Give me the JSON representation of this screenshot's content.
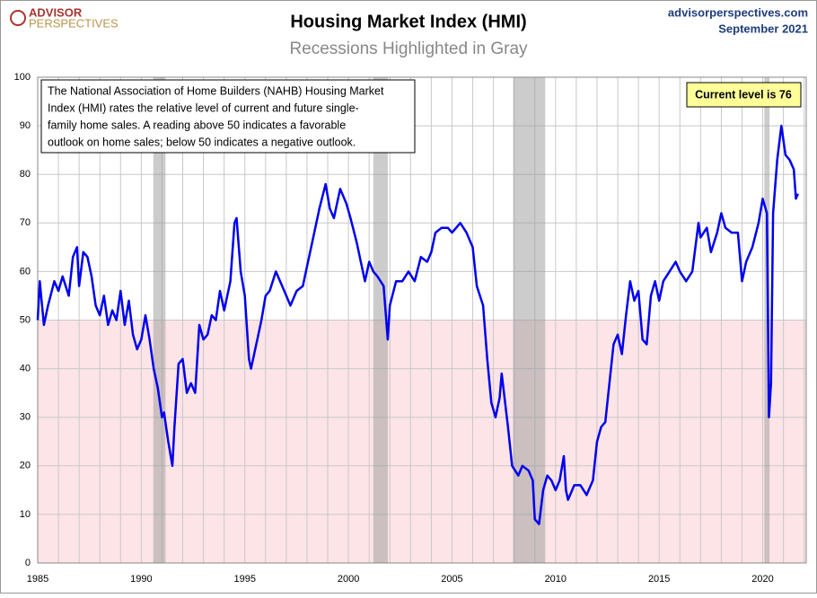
{
  "chart_data": {
    "type": "line",
    "logo": [
      "ADVISOR",
      "PERSPECTIVES"
    ],
    "title": "Housing Market Index (HMI)",
    "subtitle": "Recessions Highlighted in Gray",
    "source": "advisorperspectives.com",
    "date": "September 2021",
    "annotation": [
      "The National Association of Home Builders (NAHB) Housing Market",
      "Index (HMI) rates the relative level of current and future single-",
      "family home sales. A reading above 50 indicates a favorable",
      "outlook on home sales; below 50 indicates a negative outlook."
    ],
    "callout": "Current level is 76",
    "threshold": 50,
    "recessions": [
      [
        1990.58,
        1991.17
      ],
      [
        2001.2,
        2001.9
      ],
      [
        2007.95,
        2009.5
      ],
      [
        2020.08,
        2020.33
      ]
    ],
    "xlim": [
      1985,
      2022.1
    ],
    "xticks": [
      1985,
      1990,
      1995,
      2000,
      2005,
      2010,
      2015,
      2020
    ],
    "xgrid": [
      1986,
      1987,
      1988,
      1989,
      1991,
      1992,
      1993,
      1994,
      1996,
      1997,
      1998,
      1999,
      2001,
      2002,
      2003,
      2004,
      2006,
      2007,
      2008,
      2009,
      2011,
      2012,
      2013,
      2014,
      2016,
      2017,
      2018,
      2019,
      2021,
      2022
    ],
    "ylim": [
      0,
      100
    ],
    "yticks": [
      0,
      10,
      20,
      30,
      40,
      50,
      60,
      70,
      80,
      90,
      100
    ],
    "grid": true,
    "series": [
      {
        "name": "HMI",
        "color": "#0000ee",
        "x": [
          1985.0,
          1985.1,
          1985.3,
          1985.5,
          1985.8,
          1986.0,
          1986.2,
          1986.5,
          1986.7,
          1986.9,
          1987.0,
          1987.2,
          1987.4,
          1987.6,
          1987.8,
          1988.0,
          1988.2,
          1988.4,
          1988.6,
          1988.8,
          1989.0,
          1989.2,
          1989.4,
          1989.6,
          1989.8,
          1990.0,
          1990.2,
          1990.4,
          1990.6,
          1990.8,
          1991.0,
          1991.1,
          1991.3,
          1991.5,
          1991.6,
          1991.8,
          1992.0,
          1992.2,
          1992.4,
          1992.6,
          1992.8,
          1993.0,
          1993.2,
          1993.4,
          1993.6,
          1993.8,
          1994.0,
          1994.3,
          1994.5,
          1994.6,
          1994.8,
          1995.0,
          1995.2,
          1995.3,
          1995.6,
          1995.8,
          1996.0,
          1996.2,
          1996.5,
          1996.8,
          1997.0,
          1997.2,
          1997.5,
          1997.8,
          1998.0,
          1998.3,
          1998.6,
          1998.9,
          1999.1,
          1999.3,
          1999.6,
          1999.9,
          2000.1,
          2000.4,
          2000.6,
          2000.8,
          2001.0,
          2001.2,
          2001.4,
          2001.7,
          2001.9,
          2002.0,
          2002.3,
          2002.6,
          2002.9,
          2003.2,
          2003.5,
          2003.8,
          2004.0,
          2004.2,
          2004.5,
          2004.8,
          2005.0,
          2005.4,
          2005.7,
          2006.0,
          2006.2,
          2006.5,
          2006.7,
          2006.9,
          2007.1,
          2007.3,
          2007.4,
          2007.7,
          2007.9,
          2008.2,
          2008.4,
          2008.7,
          2008.9,
          2009.0,
          2009.2,
          2009.4,
          2009.6,
          2009.8,
          2010.0,
          2010.2,
          2010.4,
          2010.5,
          2010.6,
          2010.9,
          2011.2,
          2011.5,
          2011.8,
          2012.0,
          2012.2,
          2012.4,
          2012.6,
          2012.8,
          2013.0,
          2013.2,
          2013.4,
          2013.6,
          2013.8,
          2014.0,
          2014.2,
          2014.4,
          2014.6,
          2014.8,
          2015.0,
          2015.2,
          2015.5,
          2015.8,
          2016.0,
          2016.3,
          2016.6,
          2016.9,
          2017.0,
          2017.3,
          2017.5,
          2017.8,
          2018.0,
          2018.2,
          2018.5,
          2018.8,
          2019.0,
          2019.2,
          2019.5,
          2019.8,
          2020.0,
          2020.2,
          2020.3,
          2020.4,
          2020.5,
          2020.7,
          2020.9,
          2021.1,
          2021.3,
          2021.5,
          2021.6,
          2021.7
        ],
        "values": [
          50,
          58,
          49,
          53,
          58,
          56,
          59,
          55,
          63,
          65,
          57,
          64,
          63,
          59,
          53,
          51,
          55,
          49,
          52,
          50,
          56,
          49,
          54,
          47,
          44,
          46,
          51,
          46,
          40,
          36,
          30,
          31,
          25,
          20,
          28,
          41,
          42,
          35,
          37,
          35,
          49,
          46,
          47,
          51,
          50,
          56,
          52,
          58,
          70,
          71,
          60,
          55,
          42,
          40,
          46,
          50,
          55,
          56,
          60,
          57,
          55,
          53,
          56,
          57,
          61,
          67,
          73,
          78,
          73,
          71,
          77,
          74,
          71,
          66,
          62,
          58,
          62,
          60,
          59,
          57,
          46,
          53,
          58,
          58,
          60,
          58,
          63,
          62,
          64,
          68,
          69,
          69,
          68,
          70,
          68,
          65,
          57,
          53,
          42,
          33,
          30,
          34,
          39,
          28,
          20,
          18,
          20,
          19,
          17,
          9,
          8,
          15,
          18,
          17,
          15,
          17,
          22,
          15,
          13,
          16,
          16,
          14,
          17,
          25,
          28,
          29,
          37,
          45,
          47,
          43,
          51,
          58,
          54,
          56,
          46,
          45,
          55,
          58,
          54,
          58,
          60,
          62,
          60,
          58,
          60,
          70,
          67,
          69,
          64,
          68,
          72,
          69,
          68,
          68,
          58,
          62,
          65,
          70,
          75,
          72,
          30,
          37,
          72,
          83,
          90,
          84,
          83,
          81,
          75,
          76
        ]
      }
    ]
  }
}
